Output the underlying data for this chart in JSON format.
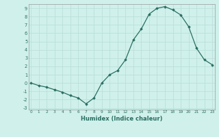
{
  "x": [
    0,
    1,
    2,
    3,
    4,
    5,
    6,
    7,
    8,
    9,
    10,
    11,
    12,
    13,
    14,
    15,
    16,
    17,
    18,
    19,
    20,
    21,
    22,
    23
  ],
  "y": [
    0,
    -0.3,
    -0.5,
    -0.8,
    -1.1,
    -1.5,
    -1.8,
    -2.5,
    -1.8,
    0,
    1.0,
    1.5,
    2.8,
    5.2,
    6.5,
    8.3,
    9.0,
    9.2,
    8.8,
    8.2,
    6.8,
    4.2,
    2.8,
    2.2
  ],
  "xlabel": "Humidex (Indice chaleur)",
  "ylim": [
    -3.2,
    9.5
  ],
  "xlim": [
    -0.3,
    23.3
  ],
  "yticks": [
    -3,
    -2,
    -1,
    0,
    1,
    2,
    3,
    4,
    5,
    6,
    7,
    8,
    9
  ],
  "xticks": [
    0,
    1,
    2,
    3,
    4,
    5,
    6,
    7,
    8,
    9,
    10,
    11,
    12,
    13,
    14,
    15,
    16,
    17,
    18,
    19,
    20,
    21,
    22,
    23
  ],
  "line_color": "#2a6e62",
  "marker": "D",
  "marker_size": 1.8,
  "bg_color": "#cff0eb",
  "grid_color": "#b8ddd8",
  "border_color": "#999999"
}
